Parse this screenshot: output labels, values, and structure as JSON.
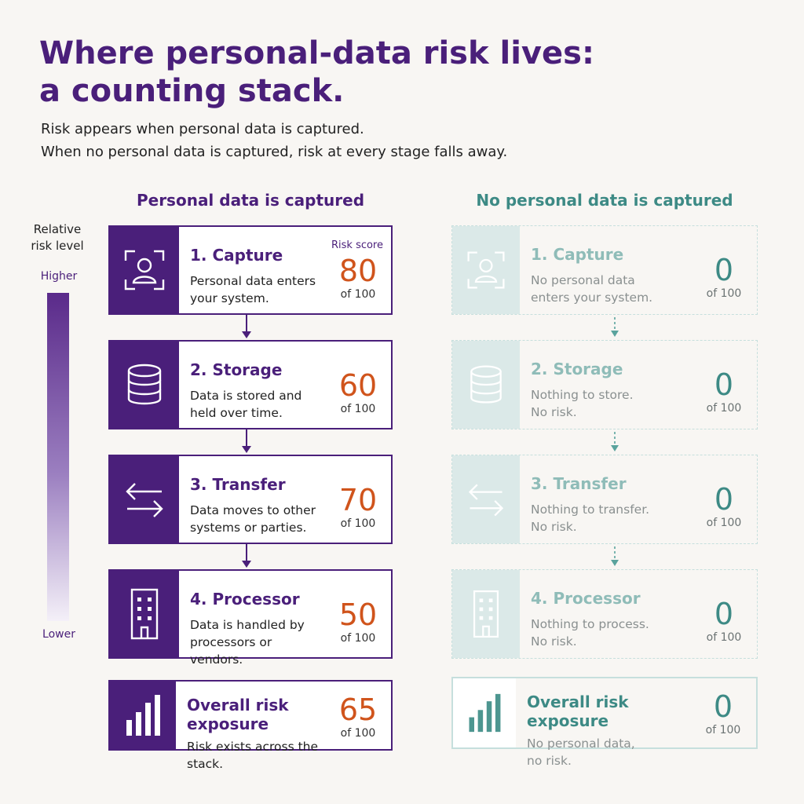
{
  "title_line1": "Where personal-data risk lives:",
  "title_line2": "a counting stack.",
  "subtitle_line1": "Risk appears when personal data is captured.",
  "subtitle_line2": "When no personal data is captured, risk at every stage falls away.",
  "legend": {
    "title_line1": "Relative",
    "title_line2": "risk level",
    "higher": "Higher",
    "lower": "Lower"
  },
  "left": {
    "heading": "Personal data is captured",
    "risk_score_label": "Risk score",
    "stages": [
      {
        "title": "1. Capture",
        "desc1": "Personal data enters",
        "desc2": "your system.",
        "score": "80",
        "of": "of 100",
        "icon": "person-scan-icon"
      },
      {
        "title": "2. Storage",
        "desc1": "Data is stored and",
        "desc2": "held over time.",
        "score": "60",
        "of": "of 100",
        "icon": "database-icon"
      },
      {
        "title": "3. Transfer",
        "desc1": "Data moves to other",
        "desc2": "systems or parties.",
        "score": "70",
        "of": "of 100",
        "icon": "transfer-arrows-icon"
      },
      {
        "title": "4. Processor",
        "desc1": "Data is handled by",
        "desc2": "processors or vendors.",
        "score": "50",
        "of": "of 100",
        "icon": "building-icon"
      }
    ],
    "overall": {
      "title": "Overall risk exposure",
      "desc1": "Risk exists across the stack.",
      "score": "65",
      "of": "of 100",
      "icon": "bar-chart-icon"
    }
  },
  "right": {
    "heading": "No personal data is captured",
    "stages": [
      {
        "title": "1. Capture",
        "desc1": "No personal data",
        "desc2": "enters your system.",
        "score": "0",
        "of": "of 100",
        "icon": "person-scan-icon"
      },
      {
        "title": "2. Storage",
        "desc1": "Nothing to store.",
        "desc2": "No risk.",
        "score": "0",
        "of": "of 100",
        "icon": "database-icon"
      },
      {
        "title": "3. Transfer",
        "desc1": "Nothing to transfer.",
        "desc2": "No risk.",
        "score": "0",
        "of": "of 100",
        "icon": "transfer-arrows-icon"
      },
      {
        "title": "4. Processor",
        "desc1": "Nothing to process.",
        "desc2": "No risk.",
        "score": "0",
        "of": "of 100",
        "icon": "building-icon"
      }
    ],
    "overall": {
      "title": "Overall risk exposure",
      "desc1": "No personal data,",
      "desc2": "no risk.",
      "score": "0",
      "of": "of 100",
      "icon": "bar-chart-icon"
    }
  },
  "colors": {
    "purple": "#4a1f7a",
    "orange": "#d0541c",
    "teal": "#3d8a85",
    "teal_light": "#dbe9e8"
  }
}
